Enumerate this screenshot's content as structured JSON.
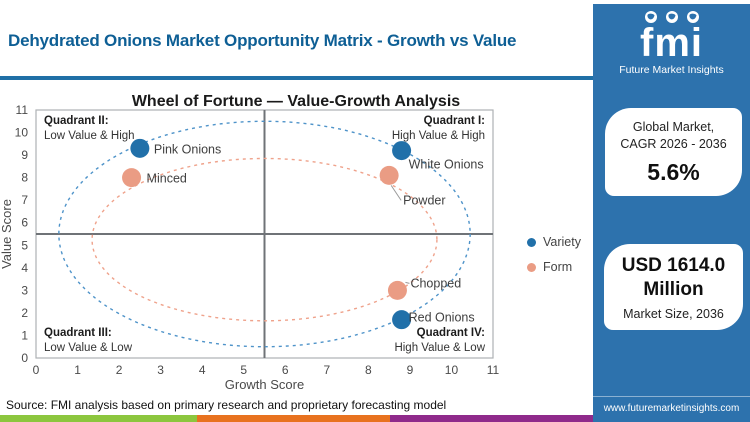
{
  "header": {
    "title": "Dehydrated Onions Market  Opportunity Matrix - Growth vs Value"
  },
  "logo": {
    "brand": "fmi",
    "tagline": "Future Market Insights",
    "icons": [
      "globe-icon",
      "globe-icon",
      "globe-icon"
    ]
  },
  "sidebar": {
    "cagr_card": {
      "line1": "Global Market,",
      "line2": "CAGR 2026 - 2036",
      "value": "5.6%"
    },
    "size_card": {
      "value": "USD 1614.0 Million",
      "label": "Market Size, 2036"
    }
  },
  "footer": {
    "source": "Source: FMI analysis based on primary research and proprietary forecasting model",
    "website": "www.futuremarketinsights.com",
    "stripe_colors": [
      "#8cc63e",
      "#e8721f",
      "#8f2a8b"
    ]
  },
  "colors": {
    "header_text": "#0e5f95",
    "divider": "#1f6fa6",
    "sidebar_blue": "#2d72ad",
    "variety_blue": "#2170a9",
    "form_salmon": "#ea9c84",
    "ellipse_blue": "#4e93c9",
    "ellipse_salmon": "#efa28b"
  },
  "chart_data": {
    "type": "scatter",
    "title": "Wheel of Fortune — Value-Growth Analysis",
    "xlabel": "Growth Score",
    "ylabel": "Value Score",
    "xlim": [
      0,
      11
    ],
    "ylim": [
      0,
      11
    ],
    "x_ticks": [
      0,
      1,
      2,
      3,
      4,
      5,
      6,
      7,
      8,
      9,
      10,
      11
    ],
    "y_ticks": [
      0,
      1,
      2,
      3,
      4,
      5,
      6,
      7,
      8,
      9,
      10,
      11
    ],
    "grid": false,
    "quadrant_center": [
      5.5,
      5.5
    ],
    "quadrants": [
      {
        "name": "Quadrant II:",
        "desc": "Low Value & High",
        "position": "top-left"
      },
      {
        "name": "Quadrant I:",
        "desc": "High Value & High",
        "position": "top-right"
      },
      {
        "name": "Quadrant III:",
        "desc": "Low Value & Low",
        "position": "bottom-left"
      },
      {
        "name": "Quadrant IV:",
        "desc": "High Value & Low",
        "position": "bottom-right"
      }
    ],
    "series": [
      {
        "name": "Variety",
        "color": "#2170a9",
        "points": [
          {
            "label": "Pink Onions",
            "x": 2.5,
            "y": 9.3
          },
          {
            "label": "White Onions",
            "x": 8.8,
            "y": 9.2
          },
          {
            "label": "Red Onions",
            "x": 8.8,
            "y": 1.7
          }
        ]
      },
      {
        "name": "Form",
        "color": "#ea9c84",
        "points": [
          {
            "label": "Minced",
            "x": 2.3,
            "y": 8.0
          },
          {
            "label": "Powder",
            "x": 8.5,
            "y": 8.1
          },
          {
            "label": "Chopped",
            "x": 8.7,
            "y": 3.0
          }
        ]
      }
    ],
    "ellipses": [
      {
        "series": "Variety",
        "cx": 5.5,
        "cy": 5.5,
        "rx": 4.95,
        "ry": 5.0,
        "color": "#4e93c9"
      },
      {
        "series": "Form",
        "cx": 5.5,
        "cy": 5.25,
        "rx": 4.15,
        "ry": 3.6,
        "color": "#efa28b"
      }
    ],
    "legend": {
      "position": "right",
      "entries": [
        "Variety",
        "Form"
      ]
    }
  }
}
